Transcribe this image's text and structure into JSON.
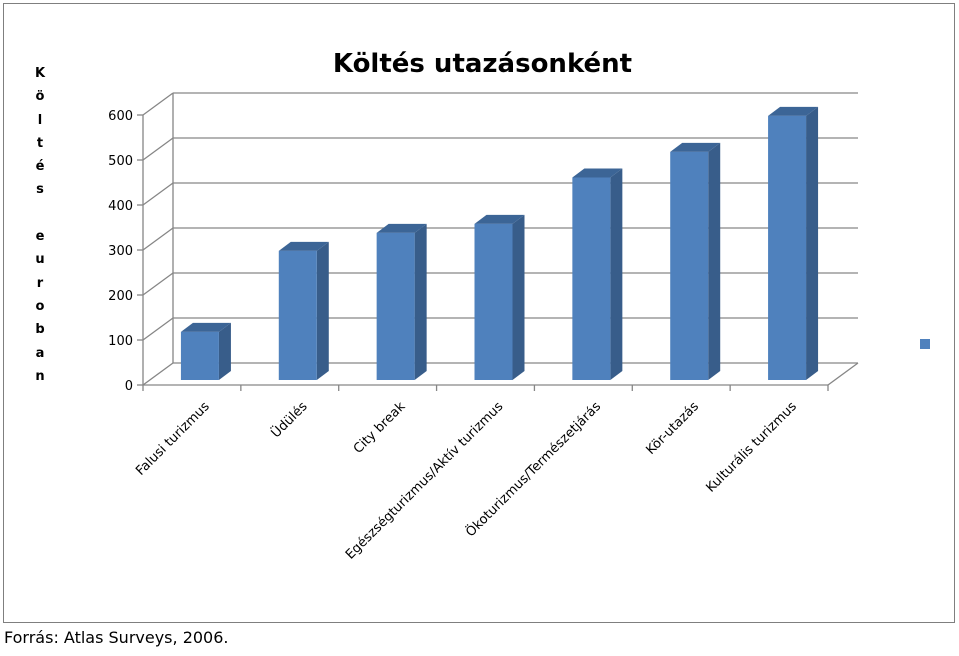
{
  "chart_data": {
    "type": "bar",
    "title": "Költés utazásonként",
    "xlabel": "",
    "ylabel": "Költés euroban",
    "categories": [
      "Falusi turizmus",
      "Üdülés",
      "City break",
      "Egészségturizmus/Aktív turizmus",
      "Ökoturizmus/Természetjárás",
      "Kör-utazás",
      "Kulturális turizmus"
    ],
    "values": [
      107,
      287,
      327,
      347,
      450,
      507,
      587
    ],
    "ylim": [
      0,
      600
    ],
    "yticks": [
      0,
      100,
      200,
      300,
      400,
      500,
      600
    ],
    "grid": true,
    "three_d": true,
    "legend": "right",
    "colors": {
      "bar": "#4f81bd",
      "bar_side": "#385d8a",
      "bar_top": "#3c6596",
      "grid": "#868686"
    }
  },
  "source": "Forrás: Atlas Surveys, 2006."
}
